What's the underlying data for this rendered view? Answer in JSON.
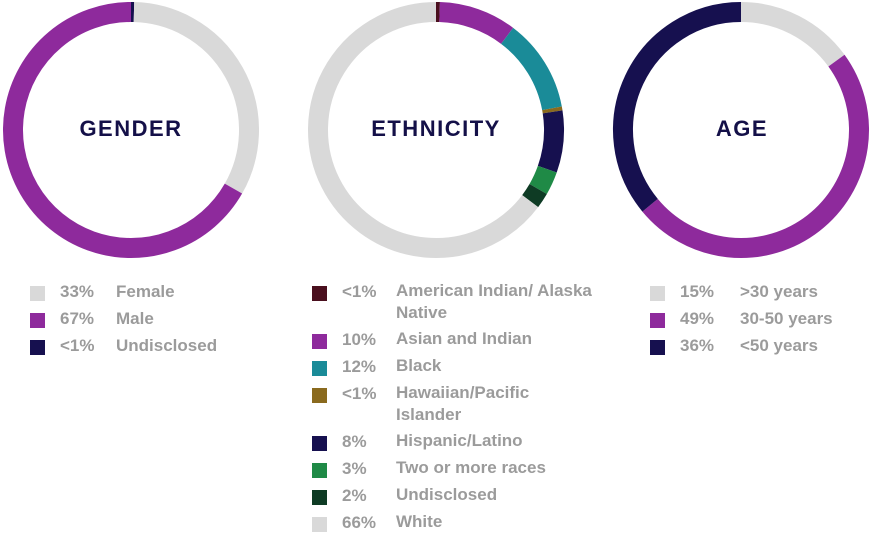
{
  "chart_data": [
    {
      "type": "pie",
      "title": "GENDER",
      "slices": [
        {
          "pct_label": "33%",
          "label": "Female",
          "value": 33,
          "color": "#d9d9d9"
        },
        {
          "pct_label": "67%",
          "label": "Male",
          "value": 67,
          "color": "#8e2a9c"
        },
        {
          "pct_label": "<1%",
          "label": "Undisclosed",
          "value": 0.4,
          "color": "#16104f"
        }
      ]
    },
    {
      "type": "pie",
      "title": "ETHNICITY",
      "slices": [
        {
          "pct_label": "<1%",
          "label": "American Indian/ Alaska Native",
          "value": 0.5,
          "color": "#4a0f1e"
        },
        {
          "pct_label": "10%",
          "label": "Asian and Indian",
          "value": 10,
          "color": "#8e2a9c"
        },
        {
          "pct_label": "12%",
          "label": "Black",
          "value": 12,
          "color": "#1a8b98"
        },
        {
          "pct_label": "<1%",
          "label": "Hawaiian/Pacific Islander",
          "value": 0.5,
          "color": "#8a6a1e"
        },
        {
          "pct_label": "8%",
          "label": "Hispanic/Latino",
          "value": 8,
          "color": "#16104f"
        },
        {
          "pct_label": "3%",
          "label": "Two or more races",
          "value": 3,
          "color": "#1f8a46"
        },
        {
          "pct_label": "2%",
          "label": "Undisclosed",
          "value": 2,
          "color": "#0e3b24"
        },
        {
          "pct_label": "66%",
          "label": "White",
          "value": 66,
          "color": "#d9d9d9"
        }
      ]
    },
    {
      "type": "pie",
      "title": "AGE",
      "slices": [
        {
          "pct_label": "15%",
          "label": ">30 years",
          "value": 15,
          "color": "#d9d9d9"
        },
        {
          "pct_label": "49%",
          "label": "30-50 years",
          "value": 49,
          "color": "#8e2a9c"
        },
        {
          "pct_label": "36%",
          "label": "<50 years",
          "value": 36,
          "color": "#16104f"
        }
      ]
    }
  ]
}
